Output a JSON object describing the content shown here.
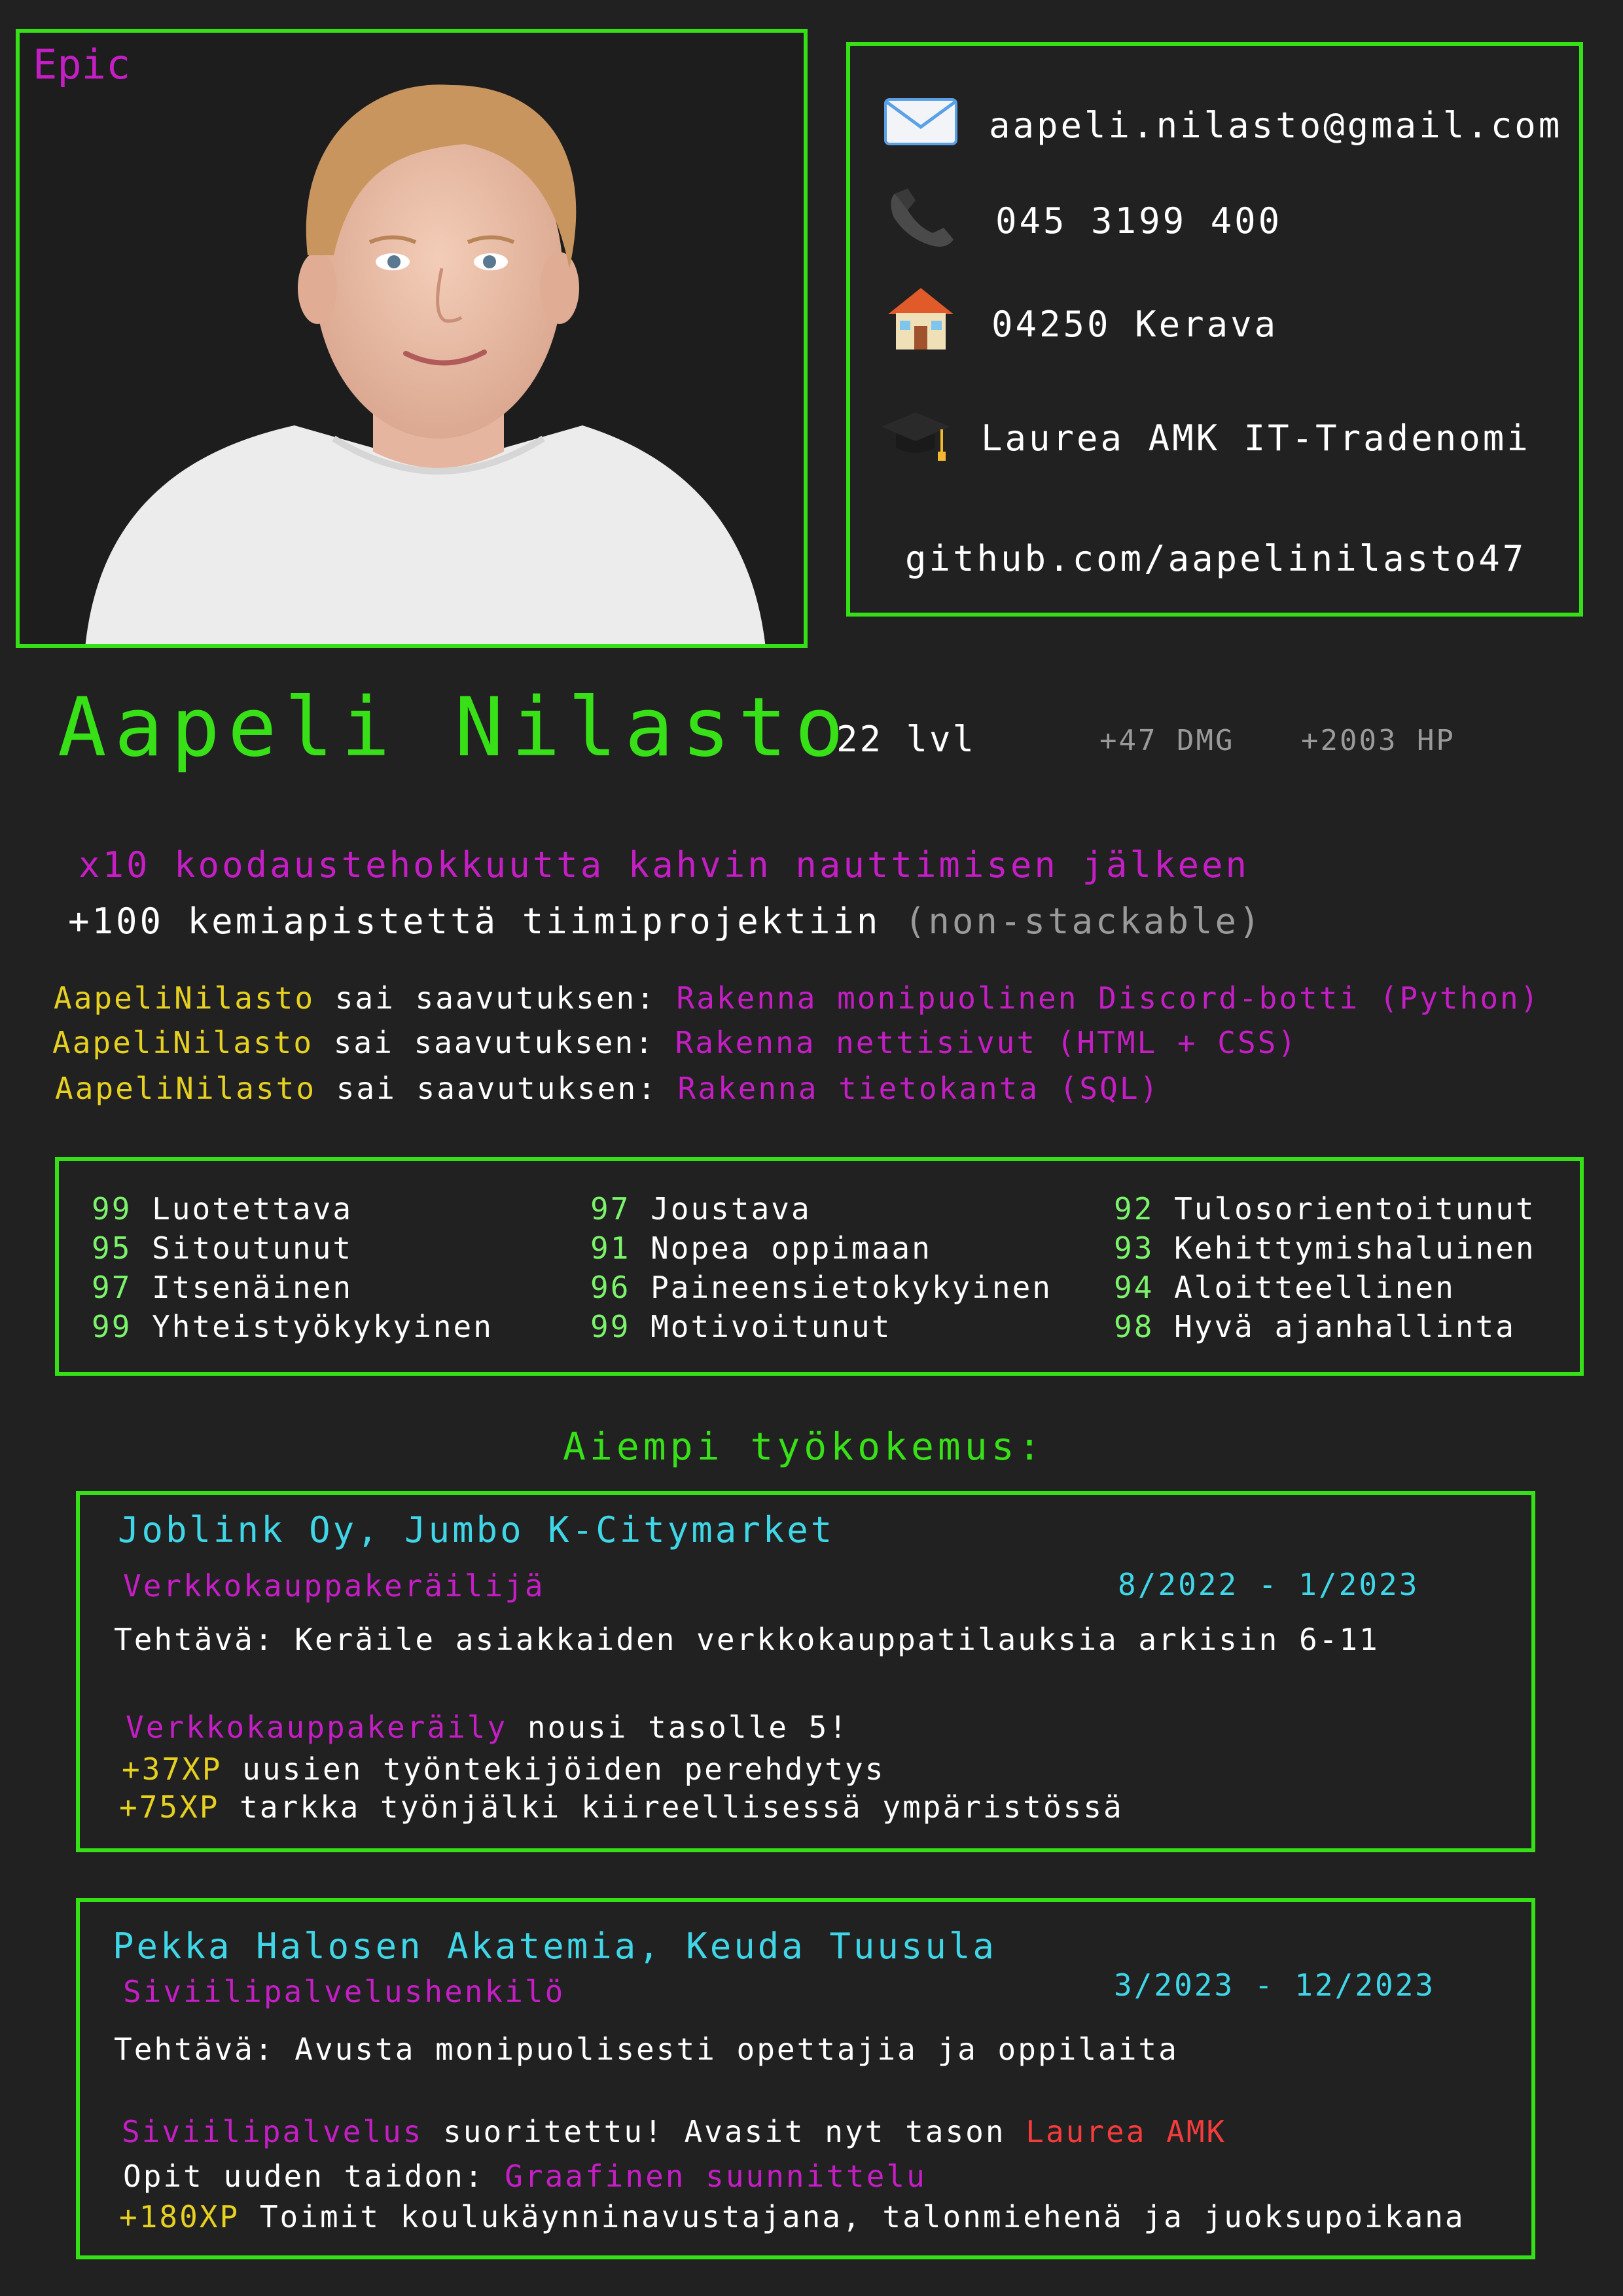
{
  "photo": {
    "rarity": "Epic"
  },
  "contact": {
    "email": "aapeli.nilasto@gmail.com",
    "phone": "045 3199 400",
    "address": "04250 Kerava",
    "education": "Laurea AMK IT-Tradenomi",
    "github": "github.com/aapelinilasto47",
    "icons": [
      "envelope-icon",
      "telephone-icon",
      "house-icon",
      "graduation-cap-icon"
    ]
  },
  "header": {
    "name": "Aapeli Nilasto",
    "level": "22 lvl",
    "dmg": "+47 DMG",
    "hp": "+2003 HP"
  },
  "buffs": {
    "line1": "x10 koodaustehokkuutta kahvin nauttimisen jälkeen",
    "line2_main": "+100 kemiapistettä tiimiprojektiin",
    "line2_note": "(non-stackable)"
  },
  "achievements": [
    {
      "user": "AapeliNilasto",
      "verb": "sai saavutuksen:",
      "title": "Rakenna monipuolinen Discord-botti (Python)"
    },
    {
      "user": "AapeliNilasto",
      "verb": "sai saavutuksen:",
      "title": "Rakenna nettisivut (HTML + CSS)"
    },
    {
      "user": "AapeliNilasto",
      "verb": "sai saavutuksen:",
      "title": "Rakenna tietokanta (SQL)"
    }
  ],
  "stats": [
    [
      {
        "value": "99",
        "label": "Luotettava"
      },
      {
        "value": "95",
        "label": "Sitoutunut"
      },
      {
        "value": "97",
        "label": "Itsenäinen"
      },
      {
        "value": "99",
        "label": "Yhteistyökykyinen"
      }
    ],
    [
      {
        "value": "97",
        "label": "Joustava"
      },
      {
        "value": "91",
        "label": "Nopea oppimaan"
      },
      {
        "value": "96",
        "label": "Paineensietokykyinen"
      },
      {
        "value": "99",
        "label": "Motivoitunut"
      }
    ],
    [
      {
        "value": "92",
        "label": "Tulosorientoitunut"
      },
      {
        "value": "93",
        "label": "Kehittymishaluinen"
      },
      {
        "value": "94",
        "label": "Aloitteellinen"
      },
      {
        "value": "98",
        "label": "Hyvä ajanhallinta"
      }
    ]
  ],
  "experience_title": "Aiempi työkokemus:",
  "jobs": [
    {
      "company": "Joblink Oy, Jumbo K-Citymarket",
      "role": "Verkkokauppakeräilijä",
      "dates": "8/2022 - 1/2023",
      "task": "Tehtävä: Keräile asiakkaiden verkkokauppatilauksia arkisin 6-11",
      "levelup_skill": "Verkkokauppakeräily",
      "levelup_text": " nousi tasolle 5!",
      "xp": [
        {
          "amount": "+37XP",
          "text": " uusien työntekijöiden perehdytys"
        },
        {
          "amount": "+75XP",
          "text": " tarkka työnjälki kiireellisessä ympäristössä"
        }
      ]
    },
    {
      "company": "Pekka Halosen Akatemia, Keuda Tuusula",
      "role": "Siviilipalvelushenkilö",
      "dates": "3/2023 - 12/2023",
      "task": "Tehtävä: Avusta monipuolisesti opettajia ja oppilaita",
      "done_skill": "Siviilipalvelus",
      "done_text": " suoritettu! Avasit nyt tason ",
      "done_unlock": "Laurea AMK",
      "learn_text": "Opit uuden taidon: ",
      "learn_skill": "Graafinen suunnittelu",
      "xp": [
        {
          "amount": "+180XP",
          "text": " Toimit koulukäynninavustajana, talonmiehenä ja juoksupoikana"
        }
      ]
    }
  ],
  "colors": {
    "background": "#212121",
    "accent_green": "#37e017",
    "magenta": "#c41ec4",
    "cyan": "#3fd7e8",
    "yellow": "#e6d020",
    "stat_green": "#7bf36a",
    "red": "#f43c3c"
  }
}
